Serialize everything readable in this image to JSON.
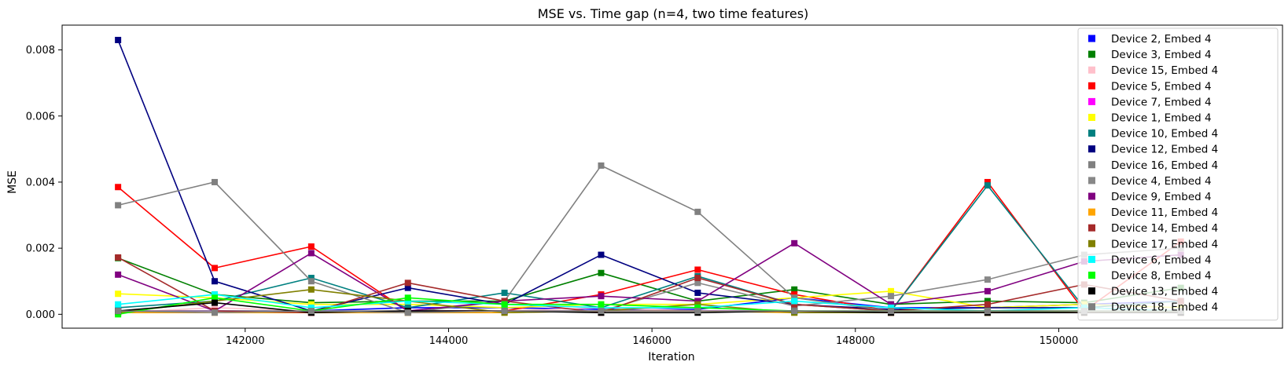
{
  "chart_data": {
    "type": "line",
    "title": "MSE vs. Time gap (n=4, two time features)",
    "xlabel": "Iteration",
    "ylabel": "MSE",
    "xlim": [
      140200,
      152200
    ],
    "ylim": [
      -0.00042,
      0.00875
    ],
    "xticks": [
      142000,
      144000,
      146000,
      148000,
      150000
    ],
    "xtick_labels": [
      "142000",
      "144000",
      "146000",
      "148000",
      "150000"
    ],
    "yticks": [
      0,
      0.002,
      0.004,
      0.006,
      0.008
    ],
    "ytick_labels": [
      "0.000",
      "0.002",
      "0.004",
      "0.006",
      "0.008"
    ],
    "x": [
      140750,
      141700,
      142650,
      143600,
      144550,
      145500,
      146450,
      147400,
      148350,
      149300,
      150250,
      151200
    ],
    "grid": false,
    "legend_position": "upper right",
    "marker": "square",
    "series": [
      {
        "name": "Device 2, Embed 4",
        "color": "#0000ff",
        "values": [
          0.0001,
          0.0001,
          0.0001,
          0.0002,
          0.0002,
          0.00015,
          0.00015,
          0.0005,
          0.0002,
          0.0002,
          0.0003,
          0.0004
        ]
      },
      {
        "name": "Device 3, Embed 4",
        "color": "#008000",
        "values": [
          0.0017,
          0.0006,
          0.00035,
          0.0004,
          0.0004,
          0.00125,
          0.0004,
          0.00075,
          0.0003,
          0.0004,
          0.00035,
          0.0008
        ]
      },
      {
        "name": "Device 15, Embed 4",
        "color": "#ffc0cb",
        "values": [
          5e-05,
          0.0002,
          0.0001,
          0.0001,
          0.0001,
          0.0002,
          0.0001,
          0.0001,
          5e-05,
          5e-05,
          5e-05,
          0.0001
        ]
      },
      {
        "name": "Device 5, Embed 4",
        "color": "#ff0000",
        "values": [
          0.00385,
          0.0014,
          0.00205,
          0.0001,
          0.0001,
          0.0006,
          0.00135,
          0.0006,
          0.0001,
          0.004,
          0.0001,
          0.0022
        ]
      },
      {
        "name": "Device 7, Embed 4",
        "color": "#ff00ff",
        "values": [
          0.0001,
          0.0001,
          5e-05,
          0.0001,
          0.0001,
          0.0001,
          0.0001,
          0.0001,
          5e-05,
          5e-05,
          0.0001,
          5e-05
        ]
      },
      {
        "name": "Device 1, Embed 4",
        "color": "#ffff00",
        "values": [
          0.00062,
          0.0005,
          0.0003,
          0.0003,
          0.0002,
          0.0003,
          0.0003,
          0.0005,
          0.0007,
          0.0002,
          0.0003,
          0.0002
        ]
      },
      {
        "name": "Device 10, Embed 4",
        "color": "#008080",
        "values": [
          0.0002,
          0.0004,
          0.0011,
          0.0002,
          0.00065,
          0.0002,
          0.00115,
          0.0003,
          0.0001,
          0.0039,
          0.0002,
          0.0004
        ]
      },
      {
        "name": "Device 12, Embed 4",
        "color": "#000080",
        "values": [
          0.0083,
          0.001,
          0.0001,
          0.0008,
          0.0003,
          0.0018,
          0.00065,
          0.0003,
          0.00015,
          0.0002,
          0.0002,
          0.0001
        ]
      },
      {
        "name": "Device 16, Embed 4",
        "color": "#808080",
        "values": [
          0.0033,
          0.004,
          0.001,
          5e-05,
          0.0004,
          0.0045,
          0.0031,
          0.0005,
          0.0001,
          5e-05,
          0.0001,
          5e-05
        ]
      },
      {
        "name": "Device 4, Embed 4",
        "color": "#888888",
        "values": [
          0.0001,
          0.0001,
          0.0001,
          0.0001,
          0.0001,
          0.0001,
          0.00095,
          0.00025,
          0.00055,
          0.00105,
          0.0018,
          0.002
        ]
      },
      {
        "name": "Device 9, Embed 4",
        "color": "#800080",
        "values": [
          0.0012,
          0.0001,
          0.00185,
          0.0001,
          0.0004,
          0.00055,
          0.0004,
          0.00215,
          0.0003,
          0.0007,
          0.0016,
          0.0018
        ]
      },
      {
        "name": "Device 11, Embed 4",
        "color": "#ffa500",
        "values": [
          5e-05,
          5e-05,
          5e-05,
          5e-05,
          5e-05,
          0.0001,
          0.0001,
          5e-05,
          5e-05,
          5e-05,
          5e-05,
          0.0001
        ]
      },
      {
        "name": "Device 14, Embed 4",
        "color": "#a52a2a",
        "values": [
          0.00172,
          0.0001,
          5e-05,
          0.00095,
          0.0004,
          5e-05,
          0.0011,
          0.0003,
          0.0001,
          0.0003,
          0.0009,
          0.0004
        ]
      },
      {
        "name": "Device 17, Embed 4",
        "color": "#808000",
        "values": [
          5e-05,
          0.0004,
          0.00075,
          0.0004,
          5e-05,
          0.0001,
          0.0003,
          5e-05,
          5e-05,
          5e-05,
          0.0001,
          5e-05
        ]
      },
      {
        "name": "Device 6, Embed 4",
        "color": "#00ffff",
        "values": [
          0.0003,
          0.0006,
          0.0002,
          0.0004,
          0.0003,
          0.0002,
          0.0002,
          0.0004,
          0.0002,
          0.0001,
          0.0002,
          0.0001
        ]
      },
      {
        "name": "Device 8, Embed 4",
        "color": "#00ff00",
        "values": [
          0.0,
          0.0005,
          0.0001,
          0.0005,
          0.0003,
          0.0003,
          0.0002,
          0.0001,
          0.0001,
          0.0001,
          0.0001,
          0.0001
        ]
      },
      {
        "name": "Device 13, Embed 4",
        "color": "#000000",
        "values": [
          0.0001,
          0.00035,
          5e-05,
          0.0001,
          0.0001,
          5e-05,
          5e-05,
          0.0001,
          5e-05,
          5e-05,
          5e-05,
          5e-05
        ]
      },
      {
        "name": "Device 18, Embed 4",
        "color": "#7f7f7f",
        "values": [
          0.0001,
          5e-05,
          0.0001,
          5e-05,
          0.0001,
          0.0001,
          0.0001,
          0.0001,
          0.0001,
          0.0001,
          0.0001,
          0.0001
        ]
      }
    ]
  }
}
